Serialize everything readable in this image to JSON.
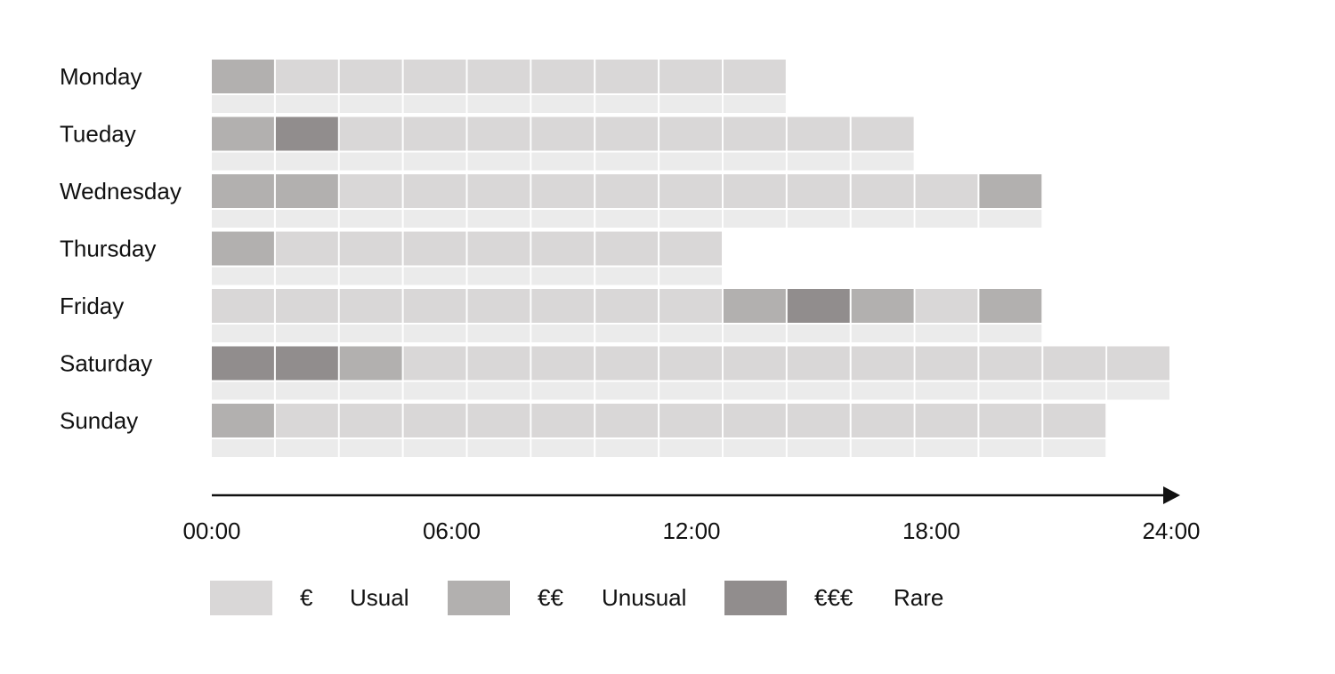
{
  "chart_data": {
    "type": "heatmap",
    "title": "",
    "xlabel": "",
    "ylabel": "",
    "x_ticks": [
      "00:00",
      "06:00",
      "12:00",
      "18:00",
      "24:00"
    ],
    "x_range_hours": [
      0,
      24
    ],
    "slot_hours": 1.6,
    "days": [
      "Monday",
      "Tueday",
      "Wednesday",
      "Thursday",
      "Friday",
      "Saturday",
      "Sunday"
    ],
    "levels": [
      {
        "key": 1,
        "symbol": "€",
        "label": "Usual",
        "color": "#d9d7d7"
      },
      {
        "key": 2,
        "symbol": "€€",
        "label": "Unusual",
        "color": "#b2b0af"
      },
      {
        "key": 3,
        "symbol": "€€€",
        "label": "Rare",
        "color": "#918d8d"
      }
    ],
    "rows": [
      [
        2,
        1,
        1,
        1,
        1,
        1,
        1,
        1,
        1
      ],
      [
        2,
        3,
        1,
        1,
        1,
        1,
        1,
        1,
        1,
        1,
        1
      ],
      [
        2,
        2,
        1,
        1,
        1,
        1,
        1,
        1,
        1,
        1,
        1,
        1,
        2
      ],
      [
        2,
        1,
        1,
        1,
        1,
        1,
        1,
        1
      ],
      [
        1,
        1,
        1,
        1,
        1,
        1,
        1,
        1,
        2,
        3,
        2,
        1,
        2
      ],
      [
        3,
        3,
        2,
        1,
        1,
        1,
        1,
        1,
        1,
        1,
        1,
        1,
        1,
        1,
        1
      ],
      [
        2,
        1,
        1,
        1,
        1,
        1,
        1,
        1,
        1,
        1,
        1,
        1,
        1,
        1
      ]
    ],
    "subrow_color": "#ebebeb",
    "axis_color": "#111111",
    "grid": false,
    "legend_position": "bottom"
  }
}
